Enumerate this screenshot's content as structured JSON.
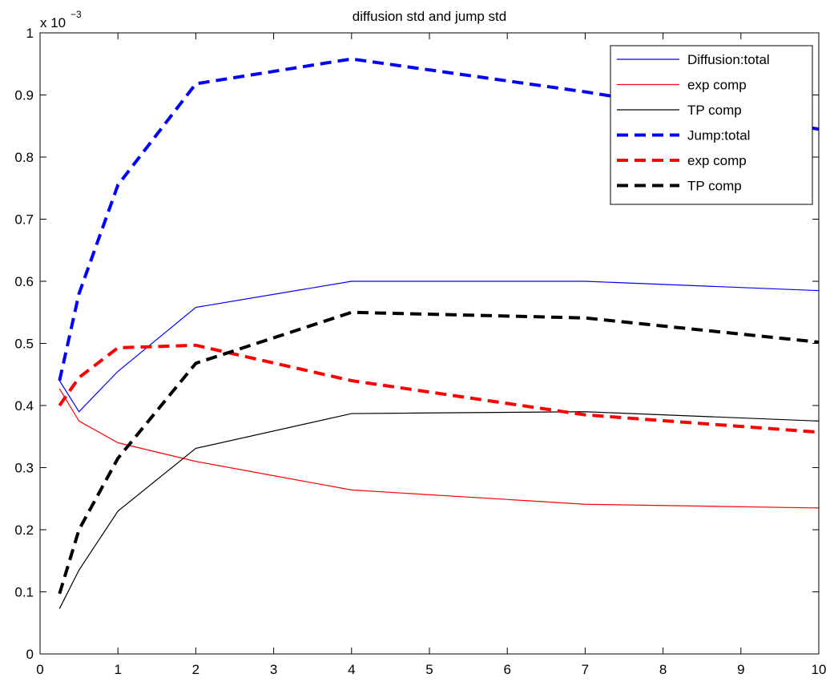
{
  "chart_data": {
    "type": "line",
    "title": "diffusion std and jump std",
    "xlabel": "",
    "ylabel": "",
    "y_exponent_label": "x 10",
    "y_exponent_power": "−3",
    "xlim": [
      0,
      10
    ],
    "ylim": [
      0,
      1
    ],
    "xticks": [
      0,
      1,
      2,
      3,
      4,
      5,
      6,
      7,
      8,
      9,
      10
    ],
    "yticks": [
      0,
      0.1,
      0.2,
      0.3,
      0.4,
      0.5,
      0.6,
      0.7,
      0.8,
      0.9,
      1
    ],
    "grid": false,
    "legend_position": "top-right",
    "x": [
      0.25,
      0.5,
      1,
      2,
      4,
      7,
      10
    ],
    "series": [
      {
        "name": "Diffusion:total",
        "color": "#0000ff",
        "style": "solid",
        "values": [
          0.44,
          0.39,
          0.455,
          0.558,
          0.6,
          0.6,
          0.585
        ]
      },
      {
        "name": "exp comp",
        "color": "#ff0000",
        "style": "solid",
        "values": [
          0.427,
          0.375,
          0.34,
          0.31,
          0.264,
          0.241,
          0.235
        ]
      },
      {
        "name": "TP comp",
        "color": "#000000",
        "style": "solid",
        "values": [
          0.073,
          0.135,
          0.23,
          0.331,
          0.387,
          0.39,
          0.375
        ]
      },
      {
        "name": "Jump:total",
        "color": "#0000ff",
        "style": "dashed",
        "values": [
          0.44,
          0.58,
          0.755,
          0.918,
          0.958,
          0.905,
          0.845
        ]
      },
      {
        "name": "exp comp",
        "color": "#ff0000",
        "style": "dashed",
        "values": [
          0.4,
          0.445,
          0.493,
          0.497,
          0.44,
          0.385,
          0.357
        ]
      },
      {
        "name": "TP comp",
        "color": "#000000",
        "style": "dashed",
        "values": [
          0.097,
          0.2,
          0.315,
          0.468,
          0.55,
          0.541,
          0.502
        ]
      }
    ]
  }
}
